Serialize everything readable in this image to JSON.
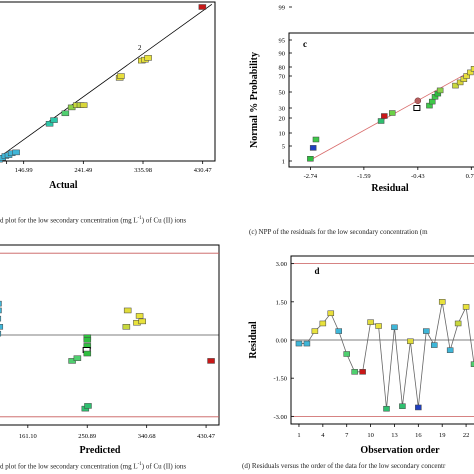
{
  "chart_data": [
    {
      "id": "a",
      "type": "scatter",
      "title": "",
      "xlabel": "Actual",
      "ylabel": "",
      "xticks": [
        "146.99",
        "241.49",
        "335.98",
        "430.47"
      ],
      "xlim": [
        100,
        450
      ],
      "ylim": [
        100,
        450
      ],
      "grid": false,
      "fit_line": [
        [
          100,
          100
        ],
        [
          445,
          445
        ]
      ],
      "annotation": {
        "text": "2",
        "x": 334,
        "y": 335
      },
      "points": [
        {
          "x": 103,
          "y": 96,
          "color": "#3fb6d8"
        },
        {
          "x": 108,
          "y": 103,
          "color": "#3fb6d8"
        },
        {
          "x": 113,
          "y": 107,
          "color": "#3fb6d8"
        },
        {
          "x": 118,
          "y": 111,
          "color": "#3fb6d8"
        },
        {
          "x": 123,
          "y": 113,
          "color": "#3fb6d8"
        },
        {
          "x": 128,
          "y": 117,
          "color": "#3fb6d8"
        },
        {
          "x": 135,
          "y": 119,
          "color": "#3fb6d8"
        },
        {
          "x": 188,
          "y": 182,
          "color": "#2cc6a8"
        },
        {
          "x": 195,
          "y": 190,
          "color": "#2cc6a8"
        },
        {
          "x": 213,
          "y": 205,
          "color": "#4fcf6f"
        },
        {
          "x": 223,
          "y": 218,
          "color": "#8bd24a"
        },
        {
          "x": 231,
          "y": 223,
          "color": "#c8d83e"
        },
        {
          "x": 237,
          "y": 223,
          "color": "#b9d438"
        },
        {
          "x": 242,
          "y": 223,
          "color": "#d9d63a"
        },
        {
          "x": 299,
          "y": 283,
          "color": "#e0dc3a"
        },
        {
          "x": 301,
          "y": 287,
          "color": "#e8de3c"
        },
        {
          "x": 334,
          "y": 321,
          "color": "#e8e23c"
        },
        {
          "x": 339,
          "y": 323,
          "color": "#e8e23c"
        },
        {
          "x": 344,
          "y": 327,
          "color": "#e8e23c"
        },
        {
          "x": 430,
          "y": 439,
          "color": "#c81818"
        }
      ],
      "caption": "d plot for the low secondary concentration (mg L",
      "caption_sup": "-1",
      "caption_tail": ") of Cu (II) ions"
    },
    {
      "id": "c",
      "type": "scatter",
      "title": "c",
      "xlabel": "Residual",
      "ylabel": "Normal % Probability",
      "xticks": [
        "-2.74",
        "-1.59",
        "-0.43",
        "0.72"
      ],
      "yticks": [
        "1",
        "5",
        "10",
        "20",
        "30",
        "50",
        "70",
        "80",
        "90",
        "95",
        "99"
      ],
      "xlim": [
        -3.2,
        0.95
      ],
      "grid": false,
      "fit_line": [
        [
          -2.74,
          3.5
        ],
        [
          0.95,
          88
        ]
      ],
      "points": [
        {
          "x": -2.74,
          "y": 1.6,
          "color": "#2fbf3f"
        },
        {
          "x": -2.68,
          "y": 4.5,
          "color": "#1f3fbf"
        },
        {
          "x": -2.62,
          "y": 7.5,
          "color": "#3fc84a"
        },
        {
          "x": -1.22,
          "y": 18,
          "color": "#2fbf6f"
        },
        {
          "x": -1.15,
          "y": 22,
          "color": "#c81818"
        },
        {
          "x": -0.98,
          "y": 25,
          "color": "#6bd046"
        },
        {
          "x": -0.45,
          "y": 30,
          "color": "#ffffff"
        },
        {
          "x": -0.43,
          "y": 39,
          "color": "#9d3a3a"
        },
        {
          "x": -0.18,
          "y": 33,
          "color": "#3fc84a"
        },
        {
          "x": -0.12,
          "y": 38,
          "color": "#3fc84a"
        },
        {
          "x": -0.06,
          "y": 44,
          "color": "#3fc84a"
        },
        {
          "x": 0.0,
          "y": 48,
          "color": "#2fbf3f"
        },
        {
          "x": 0.05,
          "y": 52,
          "color": "#8bd24a"
        },
        {
          "x": 0.38,
          "y": 58,
          "color": "#c8d83e"
        },
        {
          "x": 0.48,
          "y": 62,
          "color": "#d9d63a"
        },
        {
          "x": 0.56,
          "y": 66,
          "color": "#e0dc3a"
        },
        {
          "x": 0.62,
          "y": 70,
          "color": "#e8de3c"
        },
        {
          "x": 0.7,
          "y": 74,
          "color": "#e8e23c"
        },
        {
          "x": 0.78,
          "y": 78,
          "color": "#e8e23c"
        },
        {
          "x": 0.88,
          "y": 82,
          "color": "#e8e23c"
        }
      ],
      "caption": "(c) NPP of the residuals for the low secondary concentration (m"
    },
    {
      "id": "b",
      "type": "scatter",
      "title": "",
      "xlabel": "Predicted",
      "ylabel": "",
      "xticks": [
        "161.10",
        "250.89",
        "340.68",
        "430.47"
      ],
      "xlim": [
        110,
        450
      ],
      "ylim": [
        -3.3,
        3.3
      ],
      "limit_lines": [
        3.0,
        -3.0
      ],
      "zero_line": 0,
      "grid": false,
      "points": [
        {
          "x": 112,
          "y": 1.4,
          "color": "#3fb6d8"
        },
        {
          "x": 116,
          "y": 1.15,
          "color": "#3fb6d8"
        },
        {
          "x": 116,
          "y": 0.9,
          "color": "#3fb6d8"
        },
        {
          "x": 115,
          "y": 0.6,
          "color": "#3fb6d8"
        },
        {
          "x": 113,
          "y": 0.5,
          "color": "#3fb6d8"
        },
        {
          "x": 118,
          "y": 0.3,
          "color": "#3fb6d8"
        },
        {
          "x": 115,
          "y": 0.05,
          "color": "#3fb6d8"
        },
        {
          "x": 112,
          "y": -0.05,
          "color": "#3fb6d8"
        },
        {
          "x": 228,
          "y": -0.95,
          "color": "#4fcf6f"
        },
        {
          "x": 236,
          "y": -0.85,
          "color": "#4fcf6f"
        },
        {
          "x": 251,
          "y": -0.08,
          "color": "#2fbf3f"
        },
        {
          "x": 251,
          "y": -0.18,
          "color": "#2fbf3f"
        },
        {
          "x": 251,
          "y": -0.4,
          "color": "#2fbf3f"
        },
        {
          "x": 250,
          "y": -0.55,
          "color": "#ffffff"
        },
        {
          "x": 251,
          "y": -0.68,
          "color": "#2fbf3f"
        },
        {
          "x": 248,
          "y": -2.7,
          "color": "#2fbf6f"
        },
        {
          "x": 252,
          "y": -2.6,
          "color": "#2fbf6f"
        },
        {
          "x": 312,
          "y": 0.9,
          "color": "#e0dc3a"
        },
        {
          "x": 310,
          "y": 0.3,
          "color": "#c8d83e"
        },
        {
          "x": 326,
          "y": 0.45,
          "color": "#e8e23c"
        },
        {
          "x": 334,
          "y": 0.5,
          "color": "#e8e23c"
        },
        {
          "x": 330,
          "y": 0.7,
          "color": "#e8e23c"
        },
        {
          "x": 438,
          "y": -0.95,
          "color": "#c81818"
        }
      ],
      "caption": "d plot for the low secondary concentration (mg L",
      "caption_sup": "-1",
      "caption_tail": ") of Cu (II) ions"
    },
    {
      "id": "d",
      "type": "line",
      "title": "d",
      "xlabel": "Observation order",
      "ylabel": "Residual",
      "x": [
        1,
        2,
        3,
        4,
        5,
        6,
        7,
        8,
        9,
        10,
        11,
        12,
        13,
        14,
        15,
        16,
        17,
        18,
        19,
        20,
        21,
        22,
        23
      ],
      "values": [
        -0.14,
        -0.14,
        0.35,
        0.65,
        1.05,
        0.35,
        -0.55,
        -1.25,
        -1.25,
        0.7,
        0.55,
        -2.7,
        0.5,
        -2.6,
        -0.05,
        -2.65,
        0.35,
        -0.2,
        1.5,
        -0.4,
        0.65,
        1.3,
        -0.95
      ],
      "colors": [
        "#3fb6d8",
        "#3fb6d8",
        "#e8e23c",
        "#e8e23c",
        "#e8de3c",
        "#3fb6d8",
        "#4fcf6f",
        "#4fcf6f",
        "#c81818",
        "#e0dc3a",
        "#e8e23c",
        "#2fbf6f",
        "#3fb6d8",
        "#2fbf6f",
        "#e0dc3a",
        "#1f3fbf",
        "#3fb6d8",
        "#3fb6d8",
        "#e8e23c",
        "#3fb6d8",
        "#c8d83e",
        "#e8e23c",
        "#4fcf6f"
      ],
      "xticks": [
        "1",
        "4",
        "7",
        "10",
        "13",
        "16",
        "19",
        "22"
      ],
      "yticks": [
        "3.00",
        "1.50",
        "0.00",
        "-1.50",
        "-3.00"
      ],
      "xlim": [
        0,
        24
      ],
      "ylim": [
        -3.3,
        3.3
      ],
      "limit_lines": [
        3.0,
        -3.0
      ],
      "zero_line": 0,
      "grid": false,
      "caption": "(d) Residuals versus the order of the data for the low secondary concentr"
    }
  ]
}
